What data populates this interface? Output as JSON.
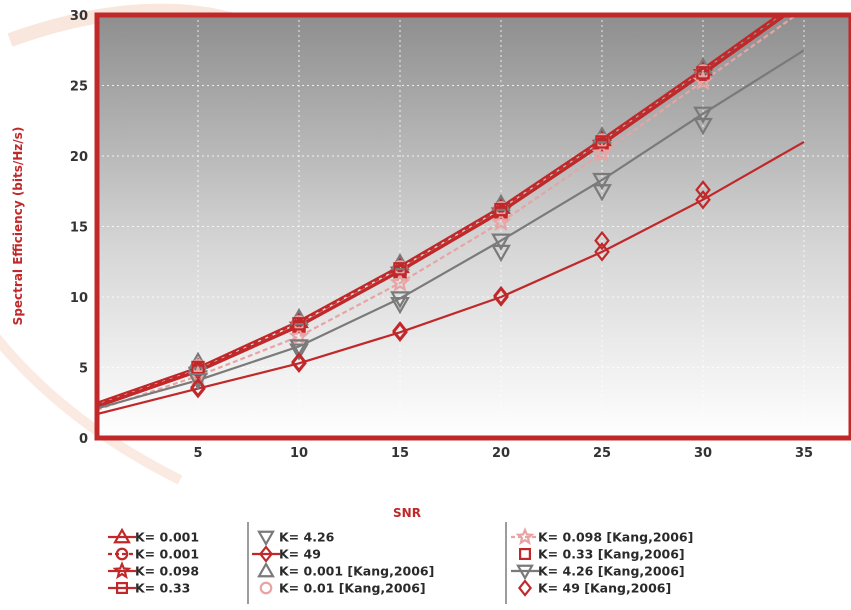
{
  "chart_data": {
    "type": "line",
    "title": "",
    "header_partial": "",
    "xlabel": "SNR",
    "ylabel": "Spectral Efficiency (bits/Hz/s)",
    "xlim": [
      0,
      35
    ],
    "ylim": [
      0,
      30
    ],
    "xticks": [
      "5",
      "10",
      "15",
      "20",
      "25",
      "30",
      "35"
    ],
    "yticks": [
      "0",
      "5",
      "10",
      "15",
      "20",
      "25",
      "30"
    ],
    "grid": true,
    "legend_position": "bottom",
    "colors": {
      "dark_red": "#c0282a",
      "gray": "#7a7a7a",
      "light_red": "#e8a4a4",
      "frame": "#c0282a",
      "plot_bg_top": "#8c8c8c",
      "plot_bg_bottom": "#ffffff"
    },
    "series": [
      {
        "name": "K= 0.001",
        "marker": "triangle",
        "color": "#c0282a",
        "line": "solid",
        "x": [
          0,
          5,
          10,
          15,
          20,
          25,
          30,
          35
        ],
        "y": [
          2.5,
          5.0,
          8.3,
          12.2,
          16.4,
          21.2,
          26.2,
          31.3
        ]
      },
      {
        "name": "K= 0.001",
        "marker": "circle",
        "color": "#c0282a",
        "line": "dashed",
        "x": [
          0,
          5,
          10,
          15,
          20,
          25,
          30,
          35
        ],
        "y": [
          2.4,
          4.9,
          8.2,
          12.1,
          16.3,
          21.1,
          26.1,
          31.2
        ]
      },
      {
        "name": "K= 0.098",
        "marker": "star",
        "color": "#c0282a",
        "line": "solid",
        "x": [
          0,
          5,
          10,
          15,
          20,
          25,
          30,
          35
        ],
        "y": [
          2.3,
          4.8,
          8.0,
          11.9,
          16.1,
          20.9,
          25.9,
          31.0
        ]
      },
      {
        "name": "K= 0.33",
        "marker": "square",
        "color": "#c0282a",
        "line": "solid",
        "x": [
          0,
          5,
          10,
          15,
          20,
          25,
          30,
          35
        ],
        "y": [
          2.2,
          4.7,
          7.9,
          11.8,
          16.0,
          20.8,
          25.8,
          30.9
        ]
      },
      {
        "name": "K= 4.26",
        "marker": "triangle-down",
        "color": "#7a7a7a",
        "line": "none",
        "x": [
          5,
          10,
          15,
          20,
          25,
          30
        ],
        "y": [
          4.3,
          6.2,
          9.5,
          13.2,
          17.5,
          22.2
        ]
      },
      {
        "name": "K= 49",
        "marker": "diamond",
        "color": "#c0282a",
        "line": "solid",
        "x": [
          0,
          5,
          10,
          15,
          20,
          25,
          30,
          35
        ],
        "y": [
          1.7,
          3.5,
          5.3,
          7.5,
          10.0,
          13.2,
          16.9,
          21.0
        ]
      },
      {
        "name": "K= 0.001 [Kang,2006]",
        "marker": "triangle",
        "color": "#7a7a7a",
        "line": "none",
        "x": [
          5,
          10,
          15,
          20,
          25,
          30
        ],
        "y": [
          5.4,
          8.5,
          12.4,
          16.6,
          21.4,
          26.3
        ]
      },
      {
        "name": "K= 0.01  [Kang,2006]",
        "marker": "circle",
        "color": "#e8a4a4",
        "line": "none",
        "x": [
          5,
          10,
          15,
          20,
          25,
          30
        ],
        "y": [
          5.1,
          8.2,
          12.1,
          16.3,
          21.1,
          26.0
        ]
      },
      {
        "name": "K= 0.098  [Kang,2006]",
        "marker": "star",
        "color": "#e8a4a4",
        "line": "dashed",
        "x": [
          0,
          5,
          10,
          15,
          20,
          25,
          30,
          35
        ],
        "y": [
          2.0,
          4.4,
          7.2,
          11.0,
          15.3,
          20.2,
          25.3,
          30.4
        ]
      },
      {
        "name": "K= 0.33  [Kang,2006]",
        "marker": "square",
        "color": "#c0282a",
        "line": "none",
        "x": [
          5,
          10,
          15,
          20,
          25,
          30
        ],
        "y": [
          5.0,
          8.1,
          12.0,
          16.2,
          21.0,
          25.9
        ]
      },
      {
        "name": "K= 4.26  [Kang,2006]",
        "marker": "triangle-down",
        "color": "#7a7a7a",
        "line": "solid",
        "x": [
          0,
          5,
          10,
          15,
          20,
          25,
          30,
          35
        ],
        "y": [
          2.1,
          4.1,
          6.5,
          9.9,
          14.0,
          18.3,
          23.0,
          27.5
        ]
      },
      {
        "name": "K= 49  [Kang,2006]",
        "marker": "diamond",
        "color": "#c0282a",
        "line": "none",
        "x": [
          5,
          10,
          15,
          20,
          25,
          30
        ],
        "y": [
          3.6,
          5.4,
          7.6,
          10.1,
          14.0,
          17.6
        ]
      }
    ]
  }
}
